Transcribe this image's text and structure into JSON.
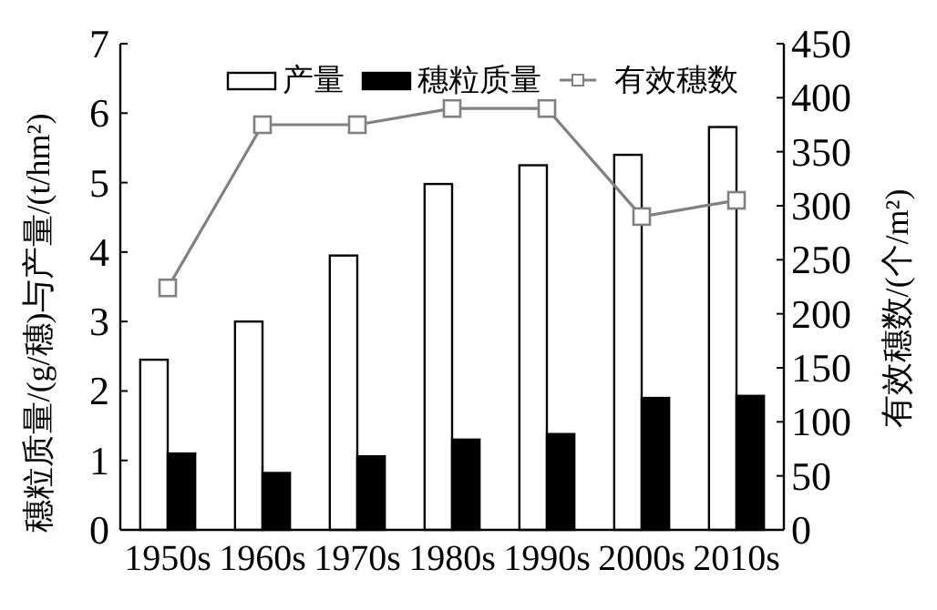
{
  "chart_data": {
    "type": "bar",
    "categories": [
      "1950s",
      "1960s",
      "1970s",
      "1980s",
      "1990s",
      "2000s",
      "2010s"
    ],
    "ylabel": "穗粒质量/(g/穗)与产量/(t/hm²)",
    "y2label": "有效穗数/(个/m²)",
    "ylim": [
      0,
      7
    ],
    "yticks": [
      0,
      1,
      2,
      3,
      4,
      5,
      6,
      7
    ],
    "y2lim": [
      0,
      450
    ],
    "y2ticks": [
      0,
      50,
      100,
      150,
      200,
      250,
      300,
      350,
      400,
      450
    ],
    "legend": "top right",
    "grid": false,
    "series": [
      {
        "name": "产量",
        "color": "#ffffff",
        "values": [
          2.45,
          3.0,
          3.95,
          4.98,
          5.25,
          5.4,
          5.8
        ]
      },
      {
        "name": "穗粒质量",
        "color": "#000000",
        "values": [
          1.1,
          0.82,
          1.06,
          1.3,
          1.38,
          1.9,
          1.93
        ]
      },
      {
        "name": "有效穗数",
        "type": "line",
        "axis": "y2",
        "marker": "square",
        "color": "#808080",
        "values": [
          224,
          375,
          375,
          390,
          390,
          290,
          305
        ]
      }
    ]
  }
}
